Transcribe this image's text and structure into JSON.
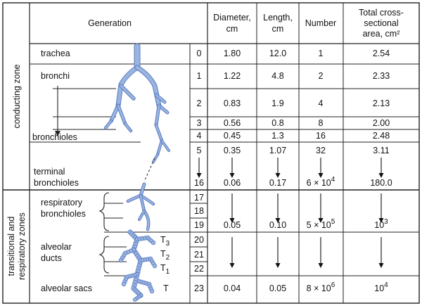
{
  "headers": {
    "generation": "Generation",
    "diameter": [
      "Diameter,",
      "cm"
    ],
    "length": [
      "Length,",
      "cm"
    ],
    "number": "Number",
    "area": [
      "Total cross-",
      "sectional",
      "area, cm²"
    ]
  },
  "zones": {
    "conducting": "conducting zone",
    "transitional": [
      "transitional and",
      "respiratory zones"
    ]
  },
  "labels": {
    "trachea": "trachea",
    "bronchi": "bronchi",
    "bronchioles": "bronchioles",
    "terminal": [
      "terminal",
      "bronchioles"
    ],
    "respiratory": [
      "respiratory",
      "bronchioles"
    ],
    "alveolar_ducts": [
      "alveolar",
      "ducts"
    ],
    "alveolar_sacs": "alveolar sacs"
  },
  "t_labels": {
    "t3": "T",
    "t3_sub": "3",
    "t2": "T",
    "t2_sub": "2",
    "t1": "T",
    "t1_sub": "1",
    "t": "T"
  },
  "rows": [
    {
      "gen": "0",
      "d": "1.80",
      "l": "12.0",
      "n": "1",
      "a": "2.54"
    },
    {
      "gen": "1",
      "d": "1.22",
      "l": "4.8",
      "n": "2",
      "a": "2.33"
    },
    {
      "gen": "2",
      "d": "0.83",
      "l": "1.9",
      "n": "4",
      "a": "2.13"
    },
    {
      "gen": "3",
      "d": "0.56",
      "l": "0.8",
      "n": "8",
      "a": "2.00"
    },
    {
      "gen": "4",
      "d": "0.45",
      "l": "1.3",
      "n": "16",
      "a": "2.48"
    },
    {
      "gen": "5",
      "d": "0.35",
      "l": "1.07",
      "n": "32",
      "a": "3.11"
    },
    {
      "gen": "16",
      "d": "0.06",
      "l": "0.17",
      "n": "6 × 10",
      "n_exp": "4",
      "a": "180.0"
    },
    {
      "gen": "17"
    },
    {
      "gen": "18"
    },
    {
      "gen": "19",
      "d": "0.05",
      "l": "0.10",
      "n": "5 × 10",
      "n_exp": "5",
      "a": "10",
      "a_exp": "3"
    },
    {
      "gen": "20"
    },
    {
      "gen": "21"
    },
    {
      "gen": "22"
    },
    {
      "gen": "23",
      "d": "0.04",
      "l": "0.05",
      "n": "8 × 10",
      "n_exp": "6",
      "a": "10",
      "a_exp": "4"
    }
  ],
  "colors": {
    "airway": "#9ab4e0",
    "airway_edge": "#5b7cc2",
    "line": "#222222"
  }
}
